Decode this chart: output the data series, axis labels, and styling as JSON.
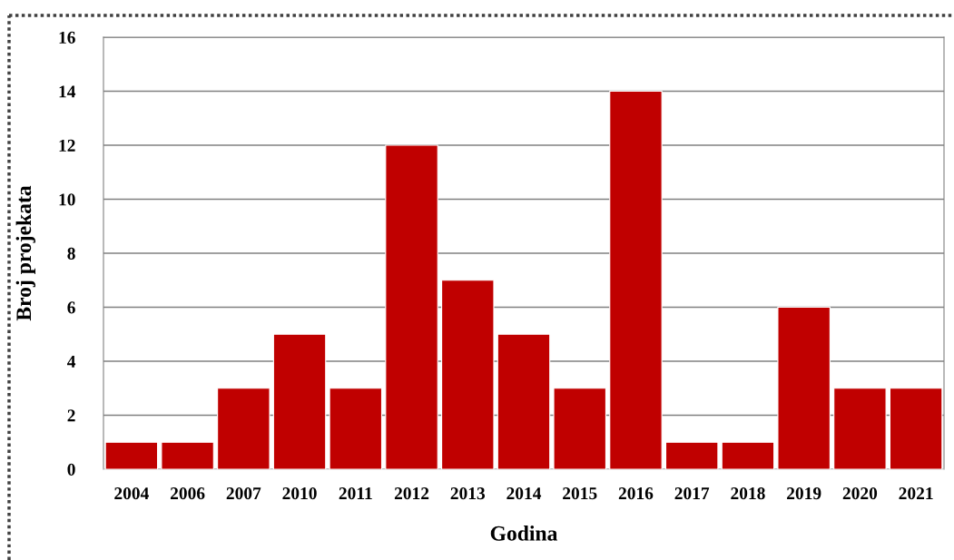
{
  "chart_data": {
    "type": "bar",
    "xlabel": "Godina",
    "ylabel": "Broj projekata",
    "categories": [
      "2004",
      "2006",
      "2007",
      "2010",
      "2011",
      "2012",
      "2013",
      "2014",
      "2015",
      "2016",
      "2017",
      "2018",
      "2019",
      "2020",
      "2021"
    ],
    "values": [
      1,
      1,
      3,
      5,
      3,
      12,
      7,
      5,
      3,
      14,
      1,
      1,
      6,
      3,
      3
    ],
    "color": "#c00000",
    "ylim": [
      0,
      16
    ],
    "yticks": [
      0,
      2,
      4,
      6,
      8,
      10,
      12,
      14,
      16
    ],
    "grid": "y"
  }
}
